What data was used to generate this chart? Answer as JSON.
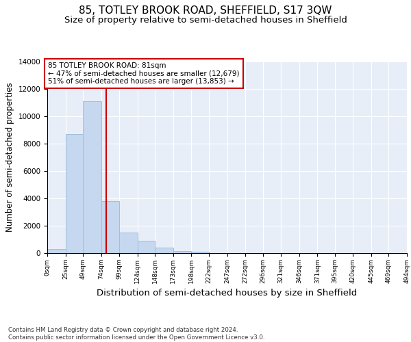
{
  "title": "85, TOTLEY BROOK ROAD, SHEFFIELD, S17 3QW",
  "subtitle": "Size of property relative to semi-detached houses in Sheffield",
  "xlabel": "Distribution of semi-detached houses by size in Sheffield",
  "ylabel": "Number of semi-detached properties",
  "bar_color": "#c5d8ef",
  "bar_edge_color": "#a0bedd",
  "property_size": 81,
  "property_line_color": "#cc0000",
  "annotation_text": "85 TOTLEY BROOK ROAD: 81sqm\n← 47% of semi-detached houses are smaller (12,679)\n51% of semi-detached houses are larger (13,853) →",
  "annotation_box_color": "#cc0000",
  "bin_edges": [
    0,
    25,
    49,
    74,
    99,
    124,
    148,
    173,
    198,
    222,
    247,
    272,
    296,
    321,
    346,
    371,
    395,
    420,
    445,
    469,
    494
  ],
  "bin_labels": [
    "0sqm",
    "25sqm",
    "49sqm",
    "74sqm",
    "99sqm",
    "124sqm",
    "148sqm",
    "173sqm",
    "198sqm",
    "222sqm",
    "247sqm",
    "272sqm",
    "296sqm",
    "321sqm",
    "346sqm",
    "371sqm",
    "395sqm",
    "420sqm",
    "445sqm",
    "469sqm",
    "494sqm"
  ],
  "bar_heights": [
    300,
    8700,
    11100,
    3800,
    1500,
    900,
    400,
    150,
    100,
    0,
    0,
    0,
    0,
    0,
    0,
    0,
    0,
    0,
    0,
    0
  ],
  "ylim": [
    0,
    14000
  ],
  "yticks": [
    0,
    2000,
    4000,
    6000,
    8000,
    10000,
    12000,
    14000
  ],
  "background_color": "#e8eef8",
  "footer_text": "Contains HM Land Registry data © Crown copyright and database right 2024.\nContains public sector information licensed under the Open Government Licence v3.0.",
  "title_fontsize": 11,
  "subtitle_fontsize": 9.5,
  "xlabel_fontsize": 9.5,
  "ylabel_fontsize": 8.5
}
